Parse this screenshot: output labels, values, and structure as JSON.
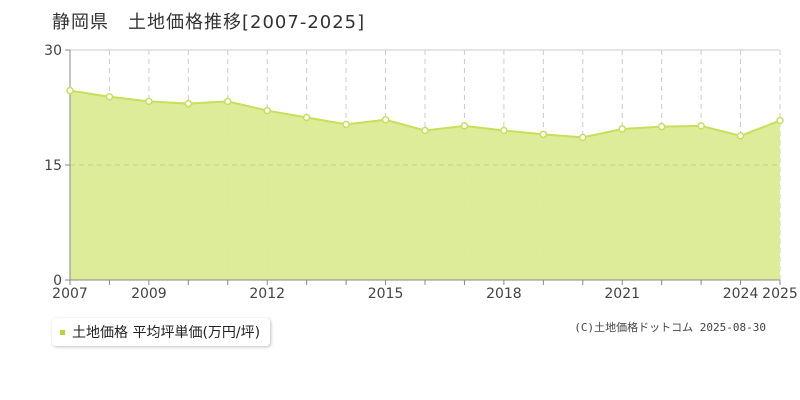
{
  "chart_data": {
    "type": "area",
    "title": "静岡県　土地価格推移[2007-2025]",
    "x": [
      2007,
      2008,
      2009,
      2010,
      2011,
      2012,
      2013,
      2014,
      2015,
      2016,
      2017,
      2018,
      2019,
      2020,
      2021,
      2022,
      2023,
      2024,
      2025
    ],
    "x_tick_labels": [
      {
        "x": 2007,
        "label": "2007"
      },
      {
        "x": 2009,
        "label": "2009"
      },
      {
        "x": 2012,
        "label": "2012"
      },
      {
        "x": 2015,
        "label": "2015"
      },
      {
        "x": 2018,
        "label": "2018"
      },
      {
        "x": 2021,
        "label": "2021"
      },
      {
        "x": 2024,
        "label": "2024"
      },
      {
        "x": 2025,
        "label": "2025"
      }
    ],
    "y_ticks": [
      0,
      15,
      30
    ],
    "ylim": [
      0,
      30
    ],
    "xlim": [
      2007,
      2025
    ],
    "series": [
      {
        "name": "土地価格 平均坪単価(万円/坪)",
        "values": [
          24.7,
          23.9,
          23.3,
          23.0,
          23.3,
          22.1,
          21.2,
          20.3,
          20.9,
          19.5,
          20.1,
          19.5,
          19.0,
          18.6,
          19.7,
          20.0,
          20.1,
          18.8,
          20.8
        ]
      }
    ],
    "grid": true,
    "legend_position": "bottom-left",
    "colors": {
      "fill": "#dbeb94",
      "line": "#c6e05a",
      "marker": "#ffffff",
      "grid": "#cccccc",
      "axis": "#888888"
    }
  },
  "copyright": "(C)土地価格ドットコム 2025-08-30"
}
